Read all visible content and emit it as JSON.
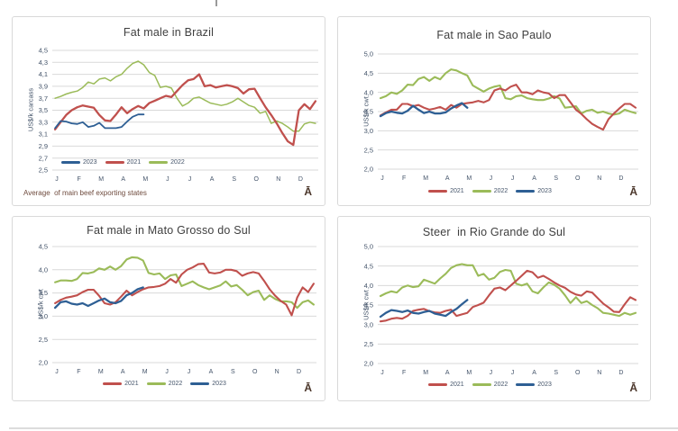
{
  "footnote_glyph": "Ā",
  "palette": {
    "red": "#c0504d",
    "green": "#9bbb59",
    "blue": "#2e5f94",
    "grid": "#d9d9d9",
    "tick_text": "#44546a",
    "title_text": "#3f3f3f",
    "note_text": "#6f4b3e",
    "glyph_text": "#4a3529"
  },
  "chart_data": [
    {
      "type": "line",
      "title": "Fat male in Brazil",
      "ylabel": "US$/k carcass",
      "note": "Average  of main beef exporting states",
      "ylim": [
        2.5,
        4.5
      ],
      "yticks": [
        "4,5",
        "4,3",
        "4,1",
        "3,9",
        "3,7",
        "3,5",
        "3,3",
        "3,1",
        "2,9",
        "2,7",
        "2,5"
      ],
      "x_months": [
        "J",
        "F",
        "M",
        "A",
        "M",
        "J",
        "J",
        "A",
        "S",
        "O",
        "N",
        "D"
      ],
      "points_per_year": 48,
      "grid": true,
      "legend_order": [
        "2023",
        "2021",
        "2022"
      ],
      "legend_position": "inside-bottom-left",
      "series": [
        {
          "name": "2022",
          "color": "#9bbb59",
          "width": 1.5,
          "values": [
            3.7,
            3.73,
            3.77,
            3.8,
            3.82,
            3.88,
            3.97,
            3.94,
            4.02,
            4.04,
            3.99,
            4.06,
            4.1,
            4.2,
            4.28,
            4.32,
            4.26,
            4.13,
            4.08,
            3.88,
            3.9,
            3.87,
            3.7,
            3.57,
            3.62,
            3.7,
            3.72,
            3.67,
            3.62,
            3.6,
            3.58,
            3.6,
            3.64,
            3.7,
            3.64,
            3.58,
            3.55,
            3.45,
            3.48,
            3.28,
            3.32,
            3.28,
            3.22,
            3.15,
            3.15,
            3.27,
            3.3,
            3.28
          ]
        },
        {
          "name": "2021",
          "color": "#c0504d",
          "width": 2.3,
          "values": [
            3.18,
            3.3,
            3.42,
            3.5,
            3.55,
            3.58,
            3.56,
            3.54,
            3.42,
            3.33,
            3.32,
            3.43,
            3.55,
            3.45,
            3.52,
            3.57,
            3.53,
            3.62,
            3.66,
            3.7,
            3.74,
            3.72,
            3.82,
            3.92,
            4.0,
            4.02,
            4.1,
            3.9,
            3.92,
            3.88,
            3.9,
            3.92,
            3.9,
            3.87,
            3.78,
            3.85,
            3.86,
            3.7,
            3.55,
            3.42,
            3.28,
            3.12,
            2.98,
            2.92,
            3.5,
            3.6,
            3.52,
            3.65
          ]
        },
        {
          "name": "2023",
          "color": "#2e5f94",
          "width": 1.8,
          "values": [
            3.2,
            3.32,
            3.31,
            3.28,
            3.27,
            3.3,
            3.22,
            3.24,
            3.29,
            3.2,
            3.2,
            3.2,
            3.22,
            3.31,
            3.39,
            3.43,
            3.43
          ]
        }
      ]
    },
    {
      "type": "line",
      "title": "Fat male in Sao Paulo",
      "ylabel": "US$/k cwt",
      "ylim": [
        2.0,
        5.0
      ],
      "yticks": [
        "5,0",
        "4,5",
        "4,0",
        "3,5",
        "3,0",
        "2,5",
        "2,0"
      ],
      "x_months": [
        "J",
        "F",
        "M",
        "A",
        "M",
        "J",
        "J",
        "A",
        "S",
        "O",
        "N",
        "D"
      ],
      "points_per_year": 48,
      "grid": true,
      "legend_order": [
        "2021",
        "2022",
        "2023"
      ],
      "legend_position": "below-center",
      "series": [
        {
          "name": "2022",
          "color": "#9bbb59",
          "width": 2.1,
          "values": [
            3.85,
            3.9,
            4.0,
            3.96,
            4.05,
            4.2,
            4.19,
            4.35,
            4.4,
            4.3,
            4.4,
            4.34,
            4.5,
            4.6,
            4.57,
            4.5,
            4.44,
            4.18,
            4.1,
            4.02,
            4.1,
            4.15,
            4.18,
            3.85,
            3.82,
            3.9,
            3.92,
            3.85,
            3.82,
            3.8,
            3.8,
            3.84,
            3.9,
            3.84,
            3.6,
            3.62,
            3.64,
            3.45,
            3.52,
            3.55,
            3.47,
            3.5,
            3.45,
            3.42,
            3.45,
            3.55,
            3.5,
            3.46
          ]
        },
        {
          "name": "2021",
          "color": "#c0504d",
          "width": 2.1,
          "values": [
            3.4,
            3.48,
            3.55,
            3.55,
            3.7,
            3.7,
            3.64,
            3.67,
            3.6,
            3.55,
            3.58,
            3.62,
            3.55,
            3.67,
            3.6,
            3.7,
            3.72,
            3.74,
            3.78,
            3.74,
            3.8,
            4.05,
            4.1,
            4.05,
            4.15,
            4.2,
            4.0,
            4.0,
            3.95,
            4.05,
            4.0,
            3.97,
            3.85,
            3.93,
            3.93,
            3.74,
            3.55,
            3.44,
            3.3,
            3.18,
            3.1,
            3.03,
            3.3,
            3.45,
            3.58,
            3.7,
            3.7,
            3.6
          ]
        },
        {
          "name": "2023",
          "color": "#2e5f94",
          "width": 2.3,
          "values": [
            3.38,
            3.46,
            3.5,
            3.47,
            3.45,
            3.52,
            3.65,
            3.55,
            3.46,
            3.5,
            3.45,
            3.45,
            3.48,
            3.58,
            3.66,
            3.72,
            3.6
          ]
        }
      ]
    },
    {
      "type": "line",
      "title": "Fat male in Mato Grosso do Sul",
      "ylabel": "US$/k cwt",
      "ylim": [
        2.0,
        4.5
      ],
      "yticks": [
        "4,5",
        "4,0",
        "3,5",
        "3,0",
        "2,5",
        "2,0"
      ],
      "x_months": [
        "J",
        "F",
        "M",
        "A",
        "M",
        "J",
        "J",
        "A",
        "S",
        "O",
        "N",
        "D"
      ],
      "points_per_year": 48,
      "grid": true,
      "legend_order": [
        "2021",
        "2022",
        "2023"
      ],
      "legend_position": "below-center",
      "series": [
        {
          "name": "2022",
          "color": "#9bbb59",
          "width": 2.1,
          "values": [
            3.73,
            3.77,
            3.77,
            3.76,
            3.8,
            3.93,
            3.92,
            3.95,
            4.03,
            4.0,
            4.07,
            4.0,
            4.08,
            4.22,
            4.27,
            4.26,
            4.2,
            3.93,
            3.9,
            3.92,
            3.8,
            3.88,
            3.9,
            3.65,
            3.7,
            3.75,
            3.67,
            3.62,
            3.58,
            3.62,
            3.66,
            3.75,
            3.64,
            3.67,
            3.57,
            3.45,
            3.52,
            3.55,
            3.35,
            3.45,
            3.37,
            3.32,
            3.32,
            3.3,
            3.18,
            3.3,
            3.34,
            3.25
          ]
        },
        {
          "name": "2021",
          "color": "#c0504d",
          "width": 2.1,
          "values": [
            3.28,
            3.35,
            3.4,
            3.42,
            3.45,
            3.52,
            3.57,
            3.57,
            3.44,
            3.28,
            3.25,
            3.3,
            3.42,
            3.55,
            3.45,
            3.52,
            3.58,
            3.62,
            3.63,
            3.65,
            3.7,
            3.8,
            3.72,
            3.9,
            4.0,
            4.05,
            4.12,
            4.13,
            3.94,
            3.92,
            3.94,
            4.0,
            4.0,
            3.97,
            3.87,
            3.92,
            3.95,
            3.92,
            3.76,
            3.58,
            3.44,
            3.33,
            3.25,
            3.02,
            3.4,
            3.62,
            3.52,
            3.7
          ]
        },
        {
          "name": "2023",
          "color": "#2e5f94",
          "width": 2.3,
          "values": [
            3.18,
            3.3,
            3.32,
            3.27,
            3.25,
            3.28,
            3.22,
            3.28,
            3.34,
            3.38,
            3.3,
            3.28,
            3.33,
            3.45,
            3.5,
            3.58,
            3.62
          ]
        }
      ]
    },
    {
      "type": "line",
      "title": "Steer  in Rio Grande do Sul",
      "ylabel": "US$/k cwt",
      "ylim": [
        2.0,
        5.0
      ],
      "yticks": [
        "5,0",
        "4,5",
        "4,0",
        "3,5",
        "3,0",
        "2,5",
        "2,0"
      ],
      "x_months": [
        "J",
        "F",
        "M",
        "A",
        "M",
        "J",
        "J",
        "A",
        "S",
        "O",
        "N",
        "D"
      ],
      "points_per_year": 48,
      "grid": true,
      "legend_order": [
        "2021",
        "2022",
        "2023"
      ],
      "legend_position": "below-center",
      "series": [
        {
          "name": "2022",
          "color": "#9bbb59",
          "width": 2.1,
          "values": [
            3.73,
            3.8,
            3.85,
            3.82,
            3.95,
            4.0,
            3.96,
            3.98,
            4.15,
            4.1,
            4.05,
            4.18,
            4.3,
            4.45,
            4.52,
            4.55,
            4.52,
            4.52,
            4.25,
            4.3,
            4.15,
            4.2,
            4.35,
            4.4,
            4.38,
            4.05,
            4.0,
            4.05,
            3.85,
            3.8,
            3.95,
            4.08,
            4.02,
            3.92,
            3.75,
            3.55,
            3.7,
            3.55,
            3.6,
            3.5,
            3.42,
            3.3,
            3.28,
            3.25,
            3.22,
            3.3,
            3.25,
            3.3
          ]
        },
        {
          "name": "2021",
          "color": "#c0504d",
          "width": 2.1,
          "values": [
            3.08,
            3.1,
            3.15,
            3.17,
            3.15,
            3.22,
            3.35,
            3.38,
            3.4,
            3.34,
            3.31,
            3.3,
            3.35,
            3.38,
            3.22,
            3.26,
            3.3,
            3.45,
            3.5,
            3.56,
            3.75,
            3.92,
            3.95,
            3.88,
            4.0,
            4.12,
            4.25,
            4.38,
            4.34,
            4.2,
            4.25,
            4.17,
            4.08,
            4.0,
            3.94,
            3.84,
            3.77,
            3.74,
            3.85,
            3.82,
            3.68,
            3.54,
            3.44,
            3.33,
            3.32,
            3.52,
            3.7,
            3.63
          ]
        },
        {
          "name": "2023",
          "color": "#2e5f94",
          "width": 2.3,
          "values": [
            3.2,
            3.3,
            3.37,
            3.35,
            3.32,
            3.36,
            3.3,
            3.28,
            3.32,
            3.35,
            3.28,
            3.25,
            3.22,
            3.32,
            3.4,
            3.52,
            3.63
          ]
        }
      ]
    }
  ]
}
